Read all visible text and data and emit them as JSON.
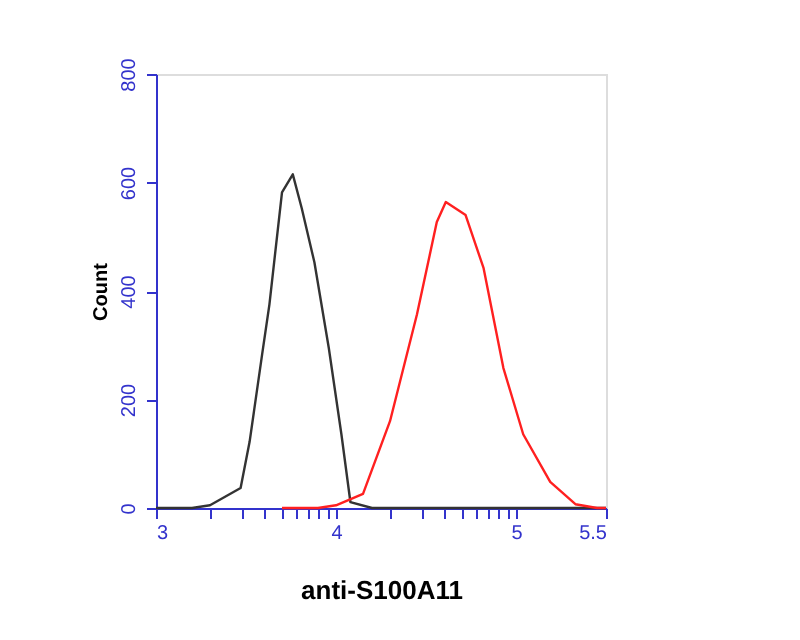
{
  "chart_data": {
    "type": "line",
    "xlabel": "anti-S100A11",
    "ylabel": "Count",
    "xlim": [
      3,
      5.5
    ],
    "ylim": [
      0,
      800
    ],
    "xticks": [
      3,
      {
        "value": 3.301,
        "label": null
      },
      {
        "value": 3.477,
        "label": null
      },
      {
        "value": 3.602,
        "label": null
      },
      {
        "value": 3.699,
        "label": null
      },
      {
        "value": 3.778,
        "label": null
      },
      {
        "value": 3.845,
        "label": null
      },
      {
        "value": 3.903,
        "label": null
      },
      {
        "value": 3.954,
        "label": null
      },
      4,
      {
        "value": 4.301,
        "label": null
      },
      {
        "value": 4.477,
        "label": null
      },
      {
        "value": 4.602,
        "label": null
      },
      {
        "value": 4.699,
        "label": null
      },
      {
        "value": 4.778,
        "label": null
      },
      {
        "value": 4.845,
        "label": null
      },
      {
        "value": 4.903,
        "label": null
      },
      {
        "value": 4.954,
        "label": null
      },
      5,
      5.5
    ],
    "yticks": [
      0,
      200,
      400,
      600,
      800
    ],
    "grid": false,
    "legend": false,
    "marker": "none",
    "line_style": "solid",
    "series": [
      {
        "color": "#333333",
        "x": [
          3.0,
          3.2,
          3.3,
          3.47,
          3.52,
          3.59,
          3.63,
          3.7,
          3.76,
          3.81,
          3.88,
          3.96,
          4.03,
          4.08,
          4.2,
          4.5,
          5.0,
          5.5
        ],
        "values": [
          0,
          0,
          5,
          37,
          122,
          284,
          375,
          582,
          615,
          552,
          453,
          295,
          136,
          11,
          0,
          0,
          0,
          0
        ]
      },
      {
        "color": "#ff2020",
        "x": [
          3.7,
          3.9,
          4.0,
          4.15,
          4.3,
          4.45,
          4.56,
          4.61,
          4.72,
          4.82,
          4.93,
          5.04,
          5.19,
          5.33,
          5.45,
          5.5
        ],
        "values": [
          0,
          0,
          5,
          26,
          160,
          357,
          527,
          564,
          540,
          442,
          258,
          136,
          48,
          7,
          0,
          0
        ]
      }
    ]
  }
}
